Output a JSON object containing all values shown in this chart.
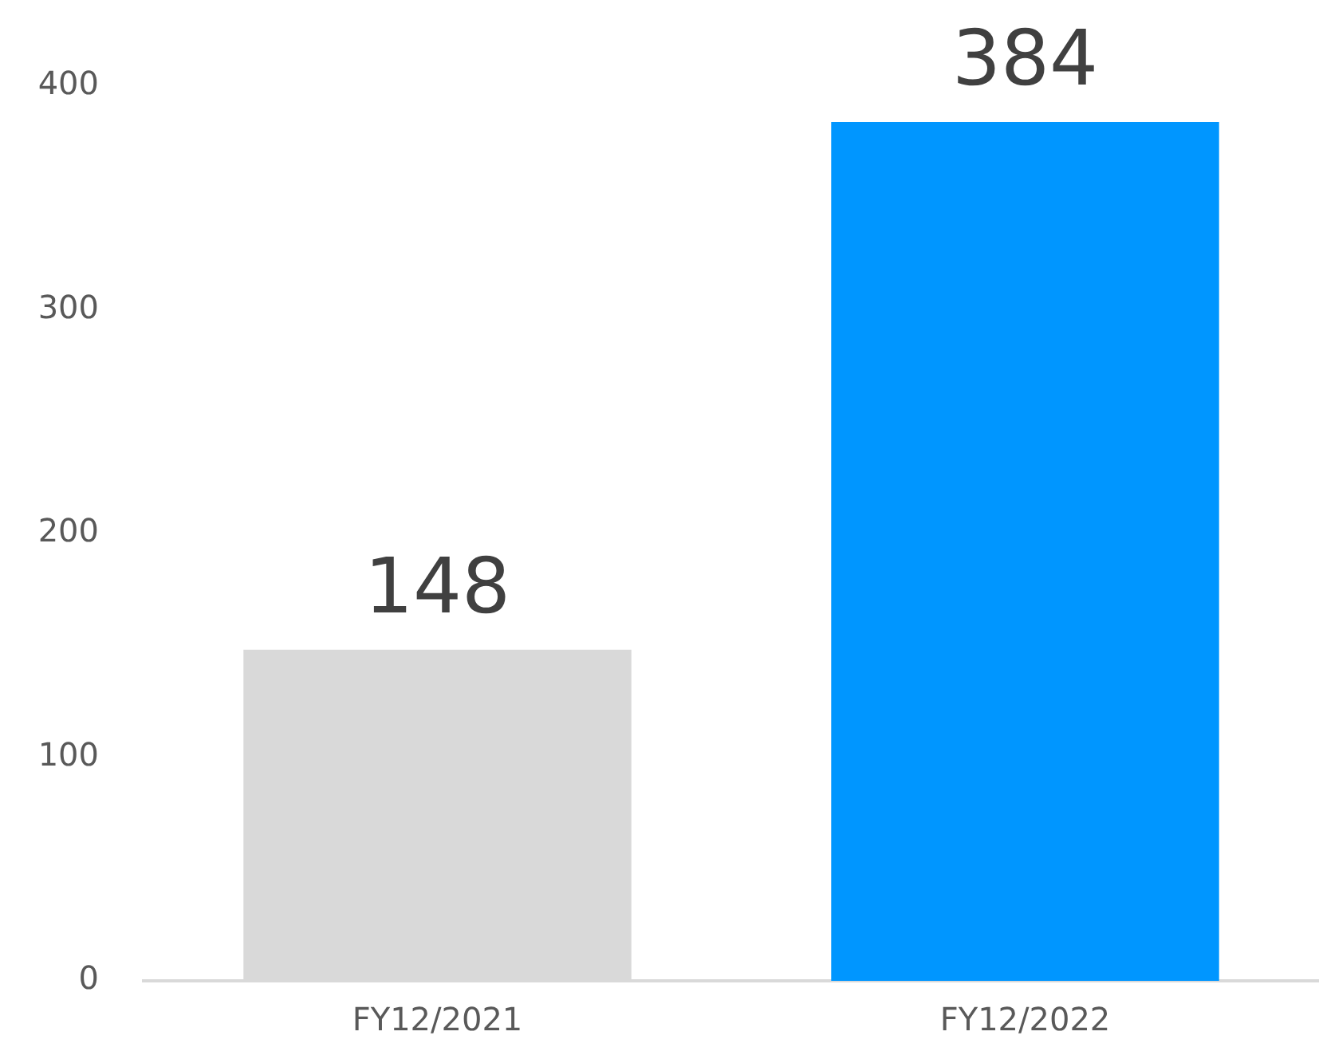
{
  "chart_data": {
    "type": "bar",
    "categories": [
      "FY12/2021",
      "FY12/2022"
    ],
    "values": [
      148,
      384
    ],
    "colors": [
      "#d9d9d9",
      "#0096ff"
    ],
    "ylim": [
      0,
      400
    ],
    "yticks": [
      0,
      100,
      200,
      300,
      400
    ],
    "grid": false,
    "legend": false,
    "data_labels": true
  }
}
